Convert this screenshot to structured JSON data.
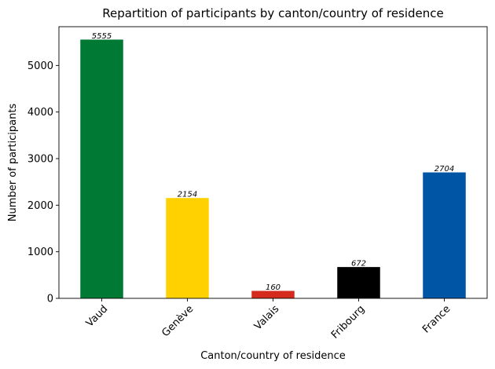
{
  "chart_data": {
    "type": "bar",
    "title": "Repartition of participants by canton/country of residence",
    "xlabel": "Canton/country of residence",
    "ylabel": "Number of participants",
    "categories": [
      "Vaud",
      "Genève",
      "Valais",
      "Fribourg",
      "France"
    ],
    "values": [
      5555,
      2154,
      160,
      672,
      2704
    ],
    "data_labels": [
      "5555",
      "2154",
      "160",
      "672",
      "2704"
    ],
    "colors": [
      "#007934",
      "#ffd100",
      "#d52b1e",
      "#000000",
      "#0055a4"
    ],
    "ylim": [
      0,
      5832
    ],
    "yticks": [
      0,
      1000,
      2000,
      3000,
      4000,
      5000
    ],
    "ytick_labels": [
      "0",
      "1000",
      "2000",
      "3000",
      "4000",
      "5000"
    ],
    "xtick_rotation": 45,
    "grid": false,
    "legend": "none"
  }
}
